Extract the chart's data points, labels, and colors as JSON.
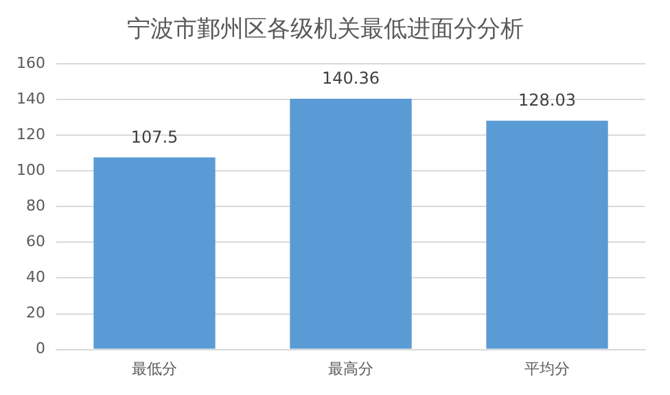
{
  "chart_data": {
    "type": "bar",
    "title": "宁波市鄞州区各级机关最低进面分分析",
    "categories": [
      "最低分",
      "最高分",
      "平均分"
    ],
    "values": [
      107.5,
      140.36,
      128.03
    ],
    "color": "#5b9bd5",
    "ylim": [
      0,
      160
    ],
    "yticks": [
      0,
      20,
      40,
      60,
      80,
      100,
      120,
      140,
      160
    ],
    "grid": "y",
    "data_labels": true,
    "legend": false
  }
}
